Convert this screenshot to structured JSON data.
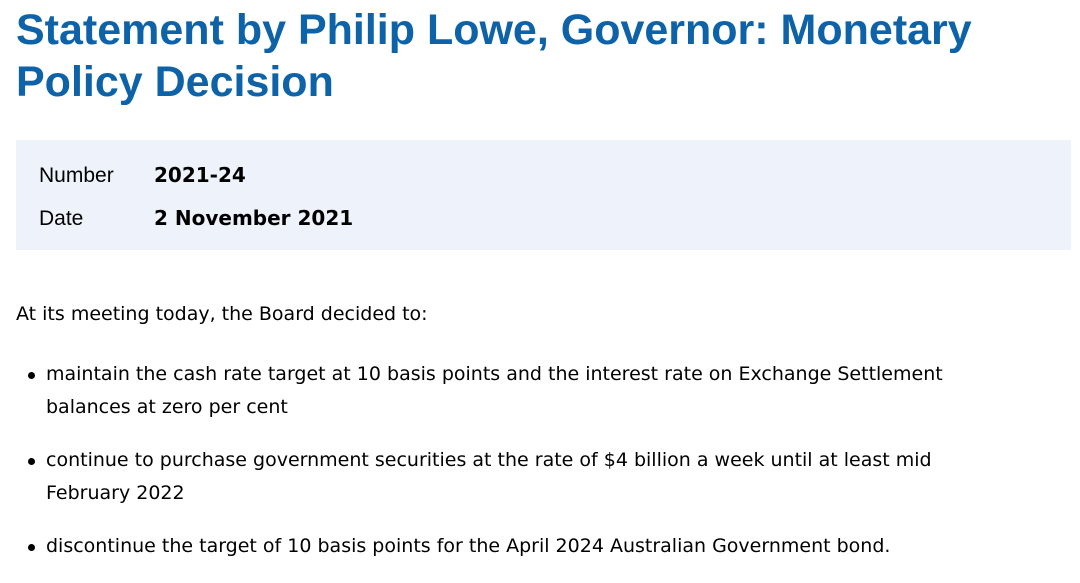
{
  "page_title": "Statement by Philip Lowe, Governor: Monetary Policy Decision",
  "meta": [
    {
      "label": "Number",
      "value": "2021-24"
    },
    {
      "label": "Date",
      "value": "2 November 2021"
    }
  ],
  "intro": "At its meeting today, the Board decided to:",
  "decisions": [
    "maintain the cash rate target at 10 basis points and the interest rate on Exchange Settlement balances at zero per cent",
    "continue to purchase government securities at the rate of $4 billion a week until at least mid February 2022",
    "discontinue the target of 10 basis points for the April 2024 Australian Government bond."
  ],
  "colors": {
    "title": "#0d62a8",
    "meta_background": "#eef3fb"
  }
}
